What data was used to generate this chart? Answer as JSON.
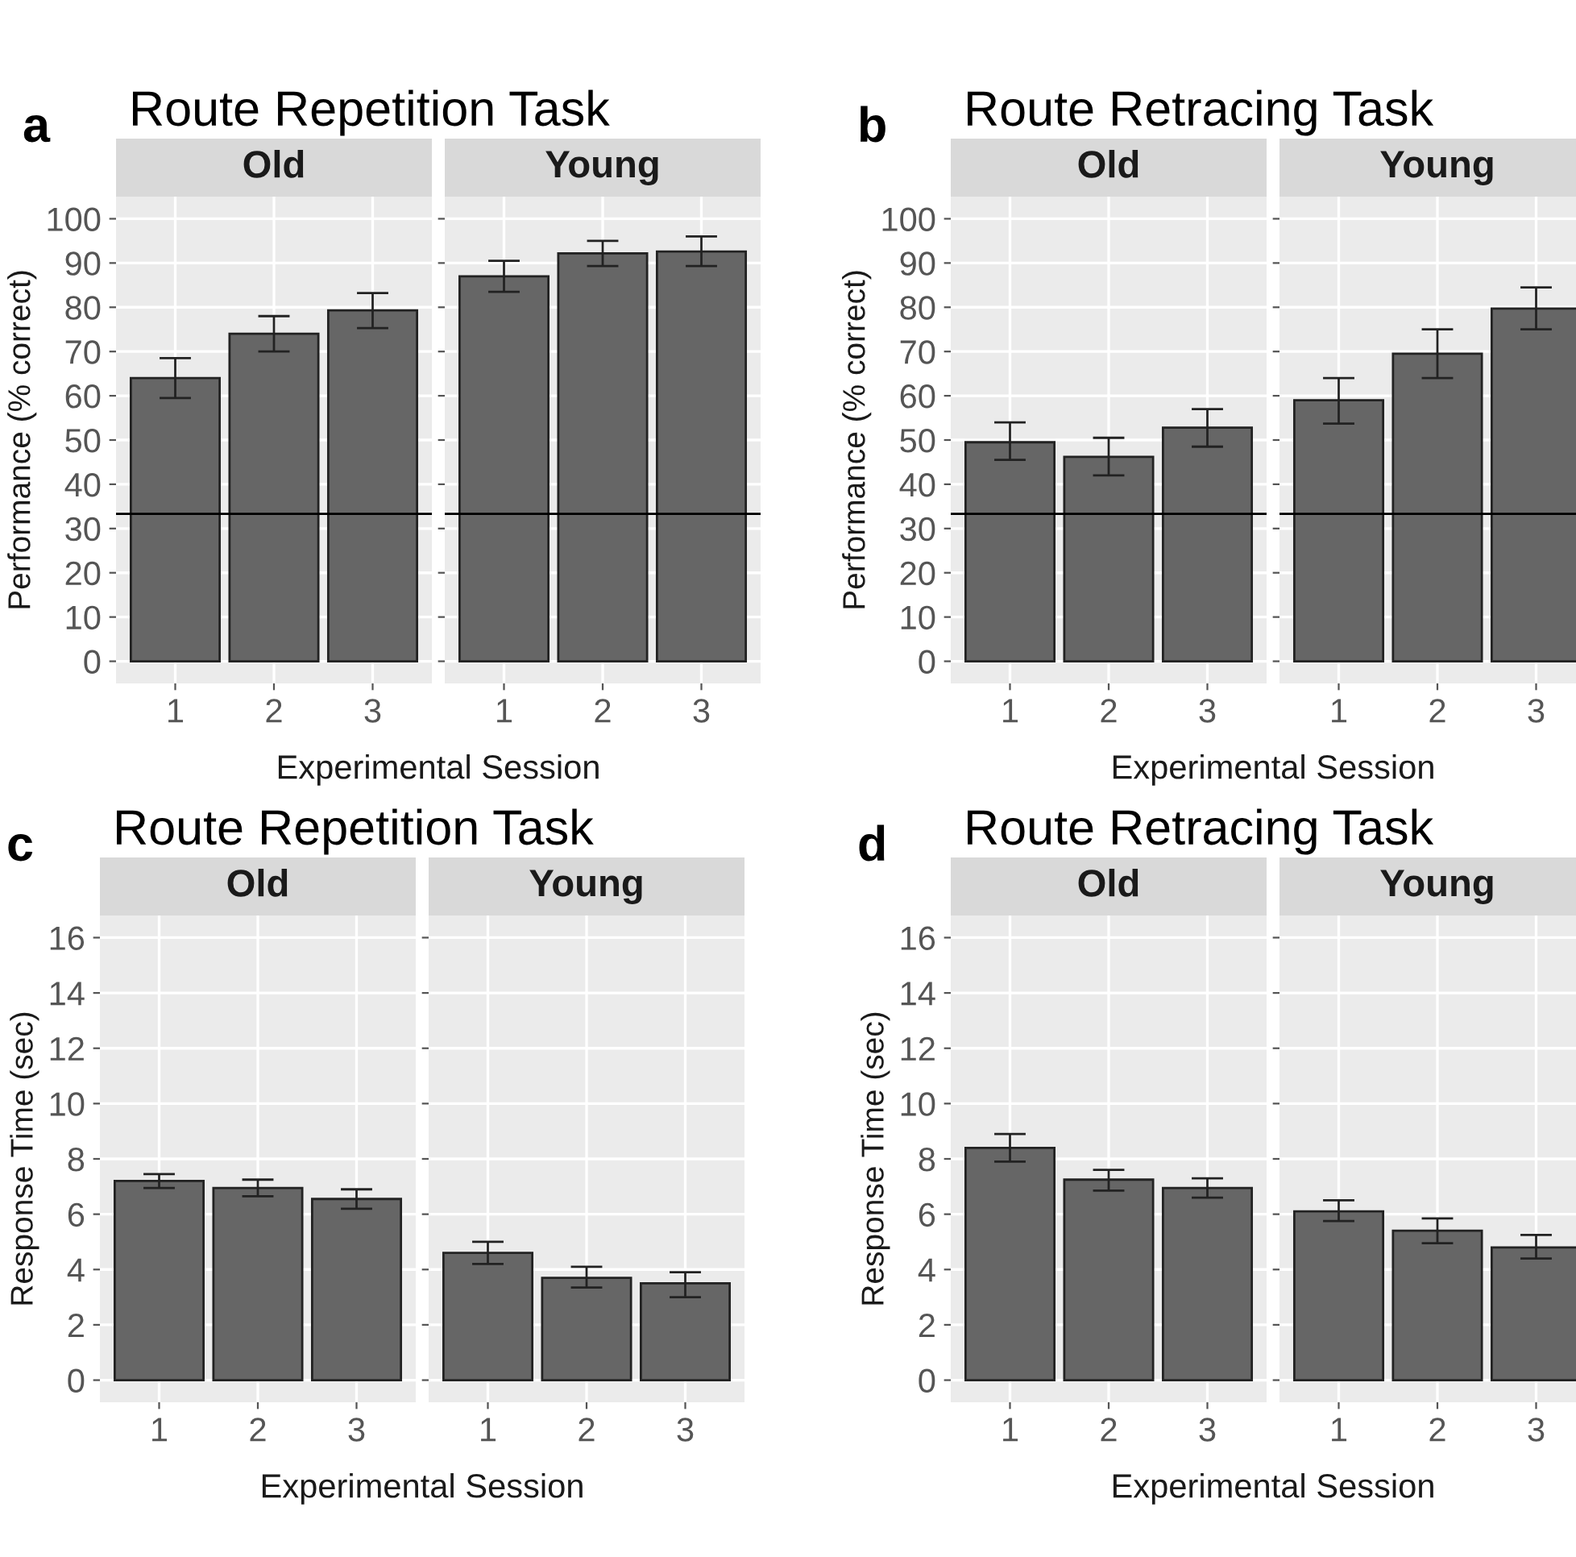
{
  "chart_data": [
    {
      "type": "bar",
      "title": "Old",
      "annotations": [
        "a",
        "Route Repetition Task"
      ],
      "xlabel": "Experimental Session",
      "ylabel": "Performance (% correct)",
      "categories": [
        "1",
        "2",
        "3"
      ],
      "series": [
        {
          "color": "#666666",
          "values": [
            64,
            74,
            79.3
          ],
          "errors": [
            [
              59.5,
              68.5
            ],
            [
              70,
              78
            ],
            [
              75.3,
              83.2
            ]
          ]
        }
      ],
      "ylim": [
        -5,
        105
      ],
      "yticks": [
        0,
        10,
        20,
        30,
        40,
        50,
        60,
        70,
        80,
        90,
        100
      ],
      "ref_lines": [
        {
          "axis": "y",
          "value": 33.3,
          "color": "#000000"
        }
      ],
      "grid": true
    },
    {
      "type": "bar",
      "title": "Young",
      "categories": [
        "1",
        "2",
        "3"
      ],
      "series": [
        {
          "color": "#666666",
          "values": [
            87,
            92.2,
            92.6
          ],
          "errors": [
            [
              83.5,
              90.5
            ],
            [
              89.3,
              95
            ],
            [
              89.3,
              96
            ]
          ]
        }
      ],
      "ylim": [
        -5,
        105
      ],
      "yticks": [
        0,
        10,
        20,
        30,
        40,
        50,
        60,
        70,
        80,
        90,
        100
      ],
      "ref_lines": [
        {
          "axis": "y",
          "value": 33.3,
          "color": "#000000"
        }
      ],
      "grid": true,
      "tick_labels": "x"
    },
    {
      "type": "bar",
      "title": "Old",
      "annotations": [
        "b",
        "Route Retracing Task"
      ],
      "xlabel": "Experimental Session",
      "ylabel": "Performance (% correct)",
      "categories": [
        "1",
        "2",
        "3"
      ],
      "series": [
        {
          "color": "#666666",
          "values": [
            49.5,
            46.2,
            52.8
          ],
          "errors": [
            [
              45.5,
              54
            ],
            [
              42,
              50.5
            ],
            [
              48.5,
              57
            ]
          ]
        }
      ],
      "ylim": [
        -5,
        105
      ],
      "yticks": [
        0,
        10,
        20,
        30,
        40,
        50,
        60,
        70,
        80,
        90,
        100
      ],
      "ref_lines": [
        {
          "axis": "y",
          "value": 33.3,
          "color": "#000000"
        }
      ],
      "grid": true
    },
    {
      "type": "bar",
      "title": "Young",
      "categories": [
        "1",
        "2",
        "3"
      ],
      "series": [
        {
          "color": "#666666",
          "values": [
            59,
            69.5,
            79.7
          ],
          "errors": [
            [
              53.7,
              64
            ],
            [
              64,
              75
            ],
            [
              75,
              84.5
            ]
          ]
        }
      ],
      "ylim": [
        -5,
        105
      ],
      "yticks": [
        0,
        10,
        20,
        30,
        40,
        50,
        60,
        70,
        80,
        90,
        100
      ],
      "ref_lines": [
        {
          "axis": "y",
          "value": 33.3,
          "color": "#000000"
        }
      ],
      "grid": true,
      "tick_labels": "x"
    },
    {
      "type": "bar",
      "title": "Old",
      "annotations": [
        "c",
        "Route Repetition Task"
      ],
      "xlabel": "Experimental Session",
      "ylabel": "Response Time (sec)",
      "categories": [
        "1",
        "2",
        "3"
      ],
      "series": [
        {
          "color": "#666666",
          "values": [
            7.2,
            6.95,
            6.55
          ],
          "errors": [
            [
              6.95,
              7.45
            ],
            [
              6.65,
              7.25
            ],
            [
              6.2,
              6.9
            ]
          ]
        }
      ],
      "ylim": [
        -0.8,
        16.8
      ],
      "yticks": [
        0,
        2,
        4,
        6,
        8,
        10,
        12,
        14,
        16
      ],
      "grid": true
    },
    {
      "type": "bar",
      "title": "Young",
      "categories": [
        "1",
        "2",
        "3"
      ],
      "series": [
        {
          "color": "#666666",
          "values": [
            4.6,
            3.7,
            3.5
          ],
          "errors": [
            [
              4.2,
              5.0
            ],
            [
              3.35,
              4.1
            ],
            [
              3.0,
              3.9
            ]
          ]
        }
      ],
      "ylim": [
        -0.8,
        16.8
      ],
      "yticks": [
        0,
        2,
        4,
        6,
        8,
        10,
        12,
        14,
        16
      ],
      "grid": true,
      "tick_labels": "x"
    },
    {
      "type": "bar",
      "title": "Old",
      "annotations": [
        "d",
        "Route Retracing Task"
      ],
      "xlabel": "Experimental Session",
      "ylabel": "Response Time (sec)",
      "categories": [
        "1",
        "2",
        "3"
      ],
      "series": [
        {
          "color": "#666666",
          "values": [
            8.4,
            7.25,
            6.95
          ],
          "errors": [
            [
              7.9,
              8.9
            ],
            [
              6.85,
              7.6
            ],
            [
              6.6,
              7.3
            ]
          ]
        }
      ],
      "ylim": [
        -0.8,
        16.8
      ],
      "yticks": [
        0,
        2,
        4,
        6,
        8,
        10,
        12,
        14,
        16
      ],
      "grid": true
    },
    {
      "type": "bar",
      "title": "Young",
      "categories": [
        "1",
        "2",
        "3"
      ],
      "series": [
        {
          "color": "#666666",
          "values": [
            6.1,
            5.4,
            4.8
          ],
          "errors": [
            [
              5.75,
              6.5
            ],
            [
              4.95,
              5.85
            ],
            [
              4.4,
              5.25
            ]
          ]
        }
      ],
      "ylim": [
        -0.8,
        16.8
      ],
      "yticks": [
        0,
        2,
        4,
        6,
        8,
        10,
        12,
        14,
        16
      ],
      "grid": true,
      "tick_labels": "x"
    }
  ]
}
